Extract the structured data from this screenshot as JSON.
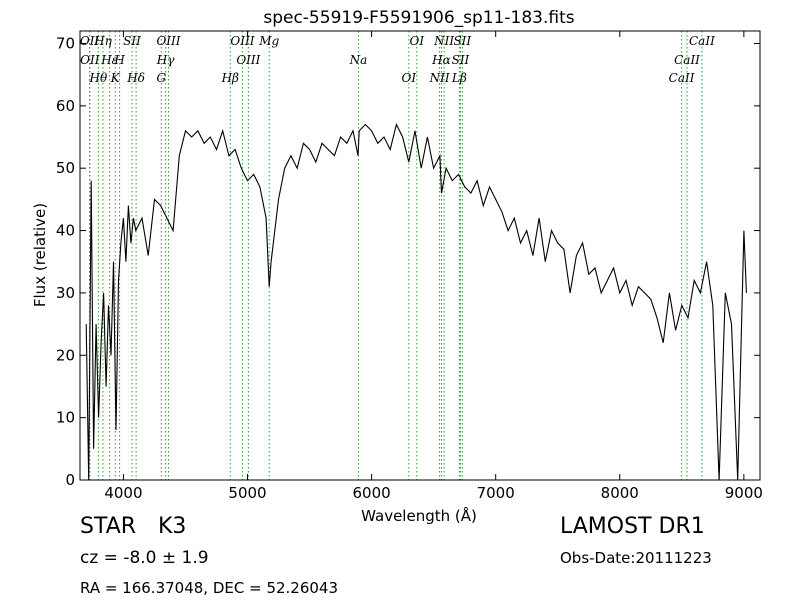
{
  "chart_data": {
    "type": "line",
    "title": "spec-55919-F5591906_sp11-183.fits",
    "xlabel": "Wavelength (Å)",
    "ylabel": "Flux (relative)",
    "xlim": [
      3650,
      9130
    ],
    "ylim": [
      0,
      72
    ],
    "xticks": [
      4000,
      5000,
      6000,
      7000,
      8000,
      9000
    ],
    "yticks": [
      0,
      10,
      20,
      30,
      40,
      50,
      60,
      70
    ],
    "grid": false,
    "series": [
      {
        "x": [
          3700,
          3720,
          3740,
          3760,
          3780,
          3800,
          3820,
          3840,
          3860,
          3880,
          3900,
          3920,
          3940,
          3960,
          3980,
          4000,
          4020,
          4040,
          4060,
          4080,
          4100,
          4150,
          4200,
          4250,
          4300,
          4350,
          4400,
          4450,
          4500,
          4550,
          4600,
          4650,
          4700,
          4750,
          4800,
          4850,
          4900,
          4950,
          5000,
          5050,
          5100,
          5150,
          5175,
          5190,
          5250,
          5300,
          5350,
          5400,
          5450,
          5500,
          5550,
          5600,
          5650,
          5700,
          5750,
          5800,
          5850,
          5890,
          5900,
          5950,
          6000,
          6050,
          6100,
          6150,
          6200,
          6250,
          6300,
          6350,
          6400,
          6450,
          6500,
          6550,
          6563,
          6600,
          6650,
          6700,
          6750,
          6800,
          6850,
          6900,
          6950,
          7000,
          7050,
          7100,
          7150,
          7200,
          7250,
          7300,
          7350,
          7400,
          7450,
          7500,
          7550,
          7600,
          7650,
          7700,
          7750,
          7800,
          7850,
          7900,
          7950,
          8000,
          8050,
          8100,
          8150,
          8200,
          8250,
          8300,
          8350,
          8400,
          8450,
          8500,
          8550,
          8600,
          8650,
          8700,
          8750,
          8800,
          8850,
          8900,
          8950,
          9000,
          9020
        ],
        "y": [
          25,
          0,
          48,
          5,
          25,
          10,
          22,
          30,
          15,
          28,
          20,
          35,
          8,
          32,
          38,
          42,
          35,
          44,
          38,
          42,
          40,
          42,
          36,
          45,
          44,
          42,
          40,
          52,
          56,
          55,
          56,
          54,
          55,
          53,
          56,
          52,
          53,
          50,
          48,
          49,
          47,
          42,
          31,
          35,
          45,
          50,
          52,
          50,
          54,
          53,
          51,
          54,
          53,
          52,
          55,
          54,
          56,
          52,
          56,
          57,
          56,
          54,
          55,
          53,
          57,
          55,
          51,
          56,
          50,
          55,
          50,
          52,
          46,
          50,
          48,
          49,
          47,
          46,
          48,
          44,
          47,
          45,
          43,
          40,
          42,
          38,
          40,
          36,
          42,
          35,
          40,
          38,
          37,
          30,
          36,
          38,
          33,
          34,
          30,
          32,
          34,
          30,
          32,
          28,
          31,
          30,
          29,
          26,
          22,
          30,
          24,
          28,
          26,
          32,
          30,
          35,
          28,
          0,
          30,
          25,
          0,
          40,
          30
        ]
      }
    ],
    "spectral_lines": [
      {
        "label": "OII",
        "x": 3727
      },
      {
        "label": "OII",
        "x": 3729
      },
      {
        "label": "Hθ",
        "x": 3798
      },
      {
        "label": "Hη",
        "x": 3835
      },
      {
        "label": "Hε",
        "x": 3889
      },
      {
        "label": "K",
        "x": 3934
      },
      {
        "label": "SII",
        "x": 4069
      },
      {
        "label": "H",
        "x": 3969
      },
      {
        "label": "Hδ",
        "x": 4102
      },
      {
        "label": "OIII",
        "x": 4363
      },
      {
        "label": "Hγ",
        "x": 4340
      },
      {
        "label": "G",
        "x": 4305
      },
      {
        "label": "OIII",
        "x": 4959
      },
      {
        "label": "OIII",
        "x": 5007
      },
      {
        "label": "Hβ",
        "x": 4861
      },
      {
        "label": "Mg",
        "x": 5175
      },
      {
        "label": "Na",
        "x": 5894
      },
      {
        "label": "OI",
        "x": 6300
      },
      {
        "label": "OI",
        "x": 6364
      },
      {
        "label": "Hα",
        "x": 6563
      },
      {
        "label": "NII",
        "x": 6548
      },
      {
        "label": "NII",
        "x": 6584
      },
      {
        "label": "SII",
        "x": 6716
      },
      {
        "label": "Lβ",
        "x": 6707
      },
      {
        "label": "SII",
        "x": 6731
      },
      {
        "label": "CaII",
        "x": 8542
      },
      {
        "label": "CaII",
        "x": 8498
      },
      {
        "label": "CaII",
        "x": 8662
      }
    ]
  },
  "info": {
    "object_class": "STAR",
    "subclass": "K3",
    "survey": "LAMOST DR1",
    "cz": "cz = -8.0 ± 1.9",
    "obs_date": "Obs-Date:20111223",
    "coords": "RA = 166.37048, DEC = 52.26043"
  },
  "colors": {
    "spectrum": "#000000",
    "line_markers": "#2ca02c"
  }
}
